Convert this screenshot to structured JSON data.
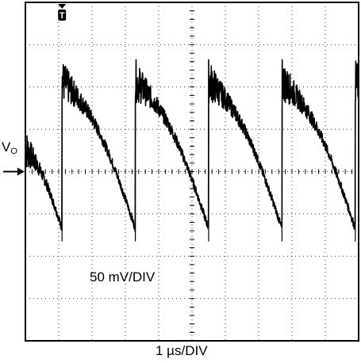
{
  "chart_data": {
    "type": "line",
    "title": "",
    "xlabel": "1 µs/DIV",
    "ylabel": "50 mV/DIV",
    "series": [
      {
        "name": "VO",
        "color": "#000000"
      }
    ],
    "xlim_div": [
      0,
      10
    ],
    "ylim_div": [
      -4,
      4
    ],
    "x_div_count": 10,
    "y_div_count": 8,
    "grid": "dotted",
    "period_div": 2.2,
    "first_reset_div": 1.1,
    "peak_v_div": 2.15,
    "trough_v_div": -1.35,
    "ground_level_div": 0,
    "trigger_marker": "T",
    "level_marker": "arrow-right"
  },
  "labels": {
    "vo_main": "V",
    "vo_sub": "O",
    "vertical_scale": "50 mV/DIV",
    "horizontal_scale": "1 µs/DIV"
  },
  "colors": {
    "trace": "#000000",
    "grid": "#000000",
    "background": "#ffffff"
  }
}
